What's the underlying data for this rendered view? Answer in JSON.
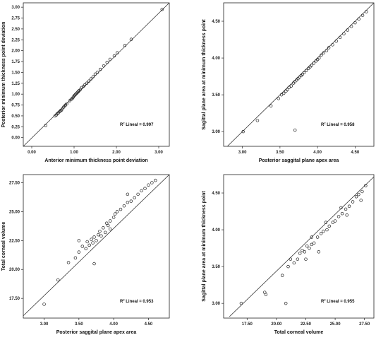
{
  "chart_data": [
    {
      "type": "scatter",
      "title": "",
      "xlabel": "Anterior minimum thickness point deviation",
      "ylabel": "Posterior minimum thickness point deviation",
      "xlim": [
        -0.2,
        3.25
      ],
      "ylim": [
        -0.2,
        3.1
      ],
      "xticks": [
        "0.00",
        "1.00",
        "2.00",
        "3.00"
      ],
      "yticks": [
        "0.00",
        "0.25",
        "0.50",
        "0.75",
        "1.00",
        "1.25",
        "1.50",
        "1.75",
        "2.00",
        "2.25",
        "2.50",
        "2.75",
        "3.00"
      ],
      "r2_label": "R² Lineal = 0.997",
      "r2_prefix": "R",
      "r2_sup": "2",
      "r2_suffix": " Lineal = 0.997",
      "fit_line": {
        "x": [
          -0.2,
          3.25
        ],
        "y": [
          -0.2,
          3.1
        ]
      },
      "points": [
        [
          0.33,
          0.28
        ],
        [
          0.55,
          0.5
        ],
        [
          0.58,
          0.52
        ],
        [
          0.6,
          0.55
        ],
        [
          0.63,
          0.57
        ],
        [
          0.66,
          0.6
        ],
        [
          0.68,
          0.62
        ],
        [
          0.7,
          0.63
        ],
        [
          0.72,
          0.66
        ],
        [
          0.75,
          0.7
        ],
        [
          0.78,
          0.73
        ],
        [
          0.8,
          0.75
        ],
        [
          0.83,
          0.78
        ],
        [
          0.9,
          0.85
        ],
        [
          0.93,
          0.88
        ],
        [
          0.96,
          0.9
        ],
        [
          0.98,
          0.93
        ],
        [
          1.0,
          0.96
        ],
        [
          1.02,
          0.98
        ],
        [
          1.04,
          1.0
        ],
        [
          1.06,
          1.02
        ],
        [
          1.08,
          1.04
        ],
        [
          1.1,
          1.06
        ],
        [
          1.12,
          1.08
        ],
        [
          1.15,
          1.11
        ],
        [
          1.18,
          1.15
        ],
        [
          1.22,
          1.18
        ],
        [
          1.25,
          1.21
        ],
        [
          1.3,
          1.25
        ],
        [
          1.35,
          1.3
        ],
        [
          1.4,
          1.35
        ],
        [
          1.45,
          1.4
        ],
        [
          1.5,
          1.46
        ],
        [
          1.55,
          1.5
        ],
        [
          1.62,
          1.57
        ],
        [
          1.7,
          1.65
        ],
        [
          1.78,
          1.73
        ],
        [
          1.85,
          1.8
        ],
        [
          1.95,
          1.88
        ],
        [
          2.02,
          1.95
        ],
        [
          2.2,
          2.12
        ],
        [
          2.35,
          2.26
        ],
        [
          3.08,
          2.95
        ]
      ]
    },
    {
      "type": "scatter",
      "title": "",
      "xlabel": "Posterior saggital plane apex area",
      "ylabel": "Sagittal plane area at minimum thickness point",
      "xlim": [
        2.75,
        4.75
      ],
      "ylim": [
        2.8,
        4.75
      ],
      "xticks": [
        "3.00",
        "3.50",
        "4.00",
        "4.50"
      ],
      "yticks": [
        "3.00",
        "3.50",
        "4.00",
        "4.50"
      ],
      "r2_label": "R² Lineal = 0.958",
      "r2_prefix": "R",
      "r2_sup": "2",
      "r2_suffix": " Lineal = 0.958",
      "fit_line": {
        "x": [
          2.8,
          4.75
        ],
        "y": [
          2.8,
          4.75
        ]
      },
      "points": [
        [
          3.01,
          3.0
        ],
        [
          3.2,
          3.15
        ],
        [
          3.38,
          3.35
        ],
        [
          3.48,
          3.45
        ],
        [
          3.52,
          3.5
        ],
        [
          3.55,
          3.52
        ],
        [
          3.58,
          3.55
        ],
        [
          3.6,
          3.57
        ],
        [
          3.62,
          3.6
        ],
        [
          3.65,
          3.62
        ],
        [
          3.68,
          3.66
        ],
        [
          3.7,
          3.68
        ],
        [
          3.72,
          3.7
        ],
        [
          3.74,
          3.72
        ],
        [
          3.76,
          3.74
        ],
        [
          3.78,
          3.76
        ],
        [
          3.8,
          3.78
        ],
        [
          3.82,
          3.8
        ],
        [
          3.85,
          3.83
        ],
        [
          3.88,
          3.86
        ],
        [
          3.9,
          3.88
        ],
        [
          3.92,
          3.9
        ],
        [
          3.95,
          3.93
        ],
        [
          3.98,
          3.96
        ],
        [
          4.0,
          3.98
        ],
        [
          4.02,
          4.0
        ],
        [
          4.05,
          4.04
        ],
        [
          4.08,
          4.07
        ],
        [
          4.12,
          4.1
        ],
        [
          4.15,
          4.14
        ],
        [
          4.2,
          4.18
        ],
        [
          4.25,
          4.23
        ],
        [
          4.3,
          4.28
        ],
        [
          4.35,
          4.33
        ],
        [
          4.4,
          4.38
        ],
        [
          4.45,
          4.43
        ],
        [
          4.5,
          4.48
        ],
        [
          4.55,
          4.53
        ],
        [
          4.6,
          4.58
        ],
        [
          4.65,
          4.63
        ],
        [
          3.7,
          3.02
        ]
      ]
    },
    {
      "type": "scatter",
      "title": "",
      "xlabel": "Posterior saggital plane apex area",
      "ylabel": "Total corneal volume",
      "xlim": [
        2.7,
        4.8
      ],
      "ylim": [
        15.8,
        28.2
      ],
      "xticks": [
        "3.00",
        "3.50",
        "4.00",
        "4.50"
      ],
      "yticks": [
        "17.50",
        "20.00",
        "22.50",
        "25.00",
        "27.50"
      ],
      "r2_label": "R² Lineal = 0.953",
      "r2_prefix": "R",
      "r2_sup": "2",
      "r2_suffix": " Lineal = 0.953",
      "fit_line": {
        "x": [
          2.7,
          4.8
        ],
        "y": [
          16.0,
          28.2
        ]
      },
      "points": [
        [
          3.0,
          17.0
        ],
        [
          3.2,
          19.1
        ],
        [
          3.35,
          20.6
        ],
        [
          3.45,
          21.0
        ],
        [
          3.5,
          21.5
        ],
        [
          3.55,
          22.0
        ],
        [
          3.6,
          21.8
        ],
        [
          3.62,
          22.4
        ],
        [
          3.65,
          22.1
        ],
        [
          3.68,
          22.6
        ],
        [
          3.7,
          22.3
        ],
        [
          3.72,
          22.8
        ],
        [
          3.75,
          22.5
        ],
        [
          3.78,
          23.0
        ],
        [
          3.8,
          23.3
        ],
        [
          3.82,
          22.9
        ],
        [
          3.85,
          23.6
        ],
        [
          3.88,
          23.2
        ],
        [
          3.9,
          24.0
        ],
        [
          3.92,
          23.8
        ],
        [
          3.95,
          24.2
        ],
        [
          4.0,
          24.5
        ],
        [
          4.02,
          24.8
        ],
        [
          4.05,
          25.0
        ],
        [
          4.1,
          25.2
        ],
        [
          4.15,
          25.5
        ],
        [
          4.2,
          25.8
        ],
        [
          4.25,
          25.9
        ],
        [
          4.3,
          26.2
        ],
        [
          4.35,
          26.5
        ],
        [
          4.4,
          26.8
        ],
        [
          4.45,
          27.0
        ],
        [
          4.5,
          27.3
        ],
        [
          4.55,
          27.5
        ],
        [
          4.6,
          27.7
        ],
        [
          3.72,
          20.5
        ],
        [
          3.5,
          22.5
        ],
        [
          4.2,
          26.5
        ],
        [
          3.95,
          23.5
        ]
      ]
    },
    {
      "type": "scatter",
      "title": "",
      "xlabel": "Total corneal volume",
      "ylabel": "Sagittal plane area at minimum thickness point",
      "xlim": [
        15.5,
        28.3
      ],
      "ylim": [
        2.8,
        4.75
      ],
      "xticks": [
        "17.50",
        "20.00",
        "22.50",
        "25.00",
        "27.50"
      ],
      "yticks": [
        "3.00",
        "3.50",
        "4.00",
        "4.50"
      ],
      "r2_label": "R² Lineal = 0.955",
      "r2_prefix": "R",
      "r2_sup": "2",
      "r2_suffix": " Lineal = 0.955",
      "fit_line": {
        "x": [
          16.0,
          28.3
        ],
        "y": [
          2.82,
          4.72
        ]
      },
      "points": [
        [
          17.0,
          3.0
        ],
        [
          19.0,
          3.15
        ],
        [
          19.1,
          3.12
        ],
        [
          20.5,
          3.38
        ],
        [
          20.8,
          3.0
        ],
        [
          21.0,
          3.5
        ],
        [
          21.5,
          3.55
        ],
        [
          21.8,
          3.6
        ],
        [
          22.0,
          3.68
        ],
        [
          22.2,
          3.72
        ],
        [
          22.4,
          3.7
        ],
        [
          22.6,
          3.78
        ],
        [
          22.8,
          3.75
        ],
        [
          23.0,
          3.8
        ],
        [
          23.2,
          3.82
        ],
        [
          23.5,
          3.9
        ],
        [
          23.8,
          3.95
        ],
        [
          24.0,
          3.98
        ],
        [
          24.3,
          4.0
        ],
        [
          24.5,
          4.05
        ],
        [
          24.8,
          4.1
        ],
        [
          25.0,
          4.12
        ],
        [
          25.3,
          4.18
        ],
        [
          25.6,
          4.22
        ],
        [
          25.9,
          4.28
        ],
        [
          26.2,
          4.32
        ],
        [
          26.5,
          4.38
        ],
        [
          26.8,
          4.45
        ],
        [
          27.0,
          4.48
        ],
        [
          27.3,
          4.52
        ],
        [
          27.6,
          4.6
        ],
        [
          22.5,
          3.6
        ],
        [
          23.0,
          3.9
        ],
        [
          24.2,
          4.1
        ],
        [
          25.5,
          4.3
        ],
        [
          26.0,
          4.2
        ],
        [
          27.2,
          4.4
        ],
        [
          23.6,
          3.7
        ],
        [
          21.2,
          3.6
        ]
      ]
    }
  ]
}
